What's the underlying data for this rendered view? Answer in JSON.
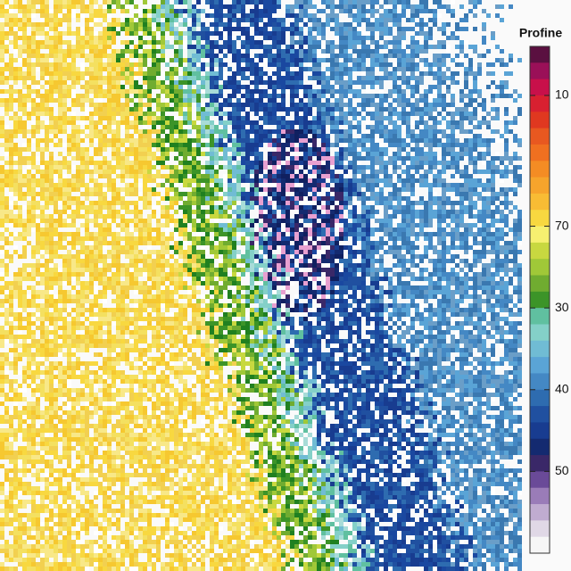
{
  "colorbar": {
    "title": "Profine",
    "labels": [
      {
        "text": "10",
        "row": 3
      },
      {
        "text": "70",
        "row": 11
      },
      {
        "text": "30",
        "row": 16
      },
      {
        "text": "40",
        "row": 21
      },
      {
        "text": "50",
        "row": 26
      }
    ],
    "colors": [
      "#5a1040",
      "#9a1058",
      "#c8104a",
      "#d82030",
      "#e03820",
      "#e85820",
      "#f07020",
      "#f48c24",
      "#f6a42c",
      "#f8bc34",
      "#f8d840",
      "#f6f070",
      "#c8d840",
      "#a0c838",
      "#70ac30",
      "#3c9428",
      "#60c0a0",
      "#84d0c8",
      "#70bcd4",
      "#5aa4d6",
      "#4488c4",
      "#2e6cb0",
      "#2050a0",
      "#183c90",
      "#142a70",
      "#3a2868",
      "#6a4a98",
      "#9a7cb8",
      "#c0acd0",
      "#e0d8e6",
      "#f6f6f6"
    ]
  }
}
